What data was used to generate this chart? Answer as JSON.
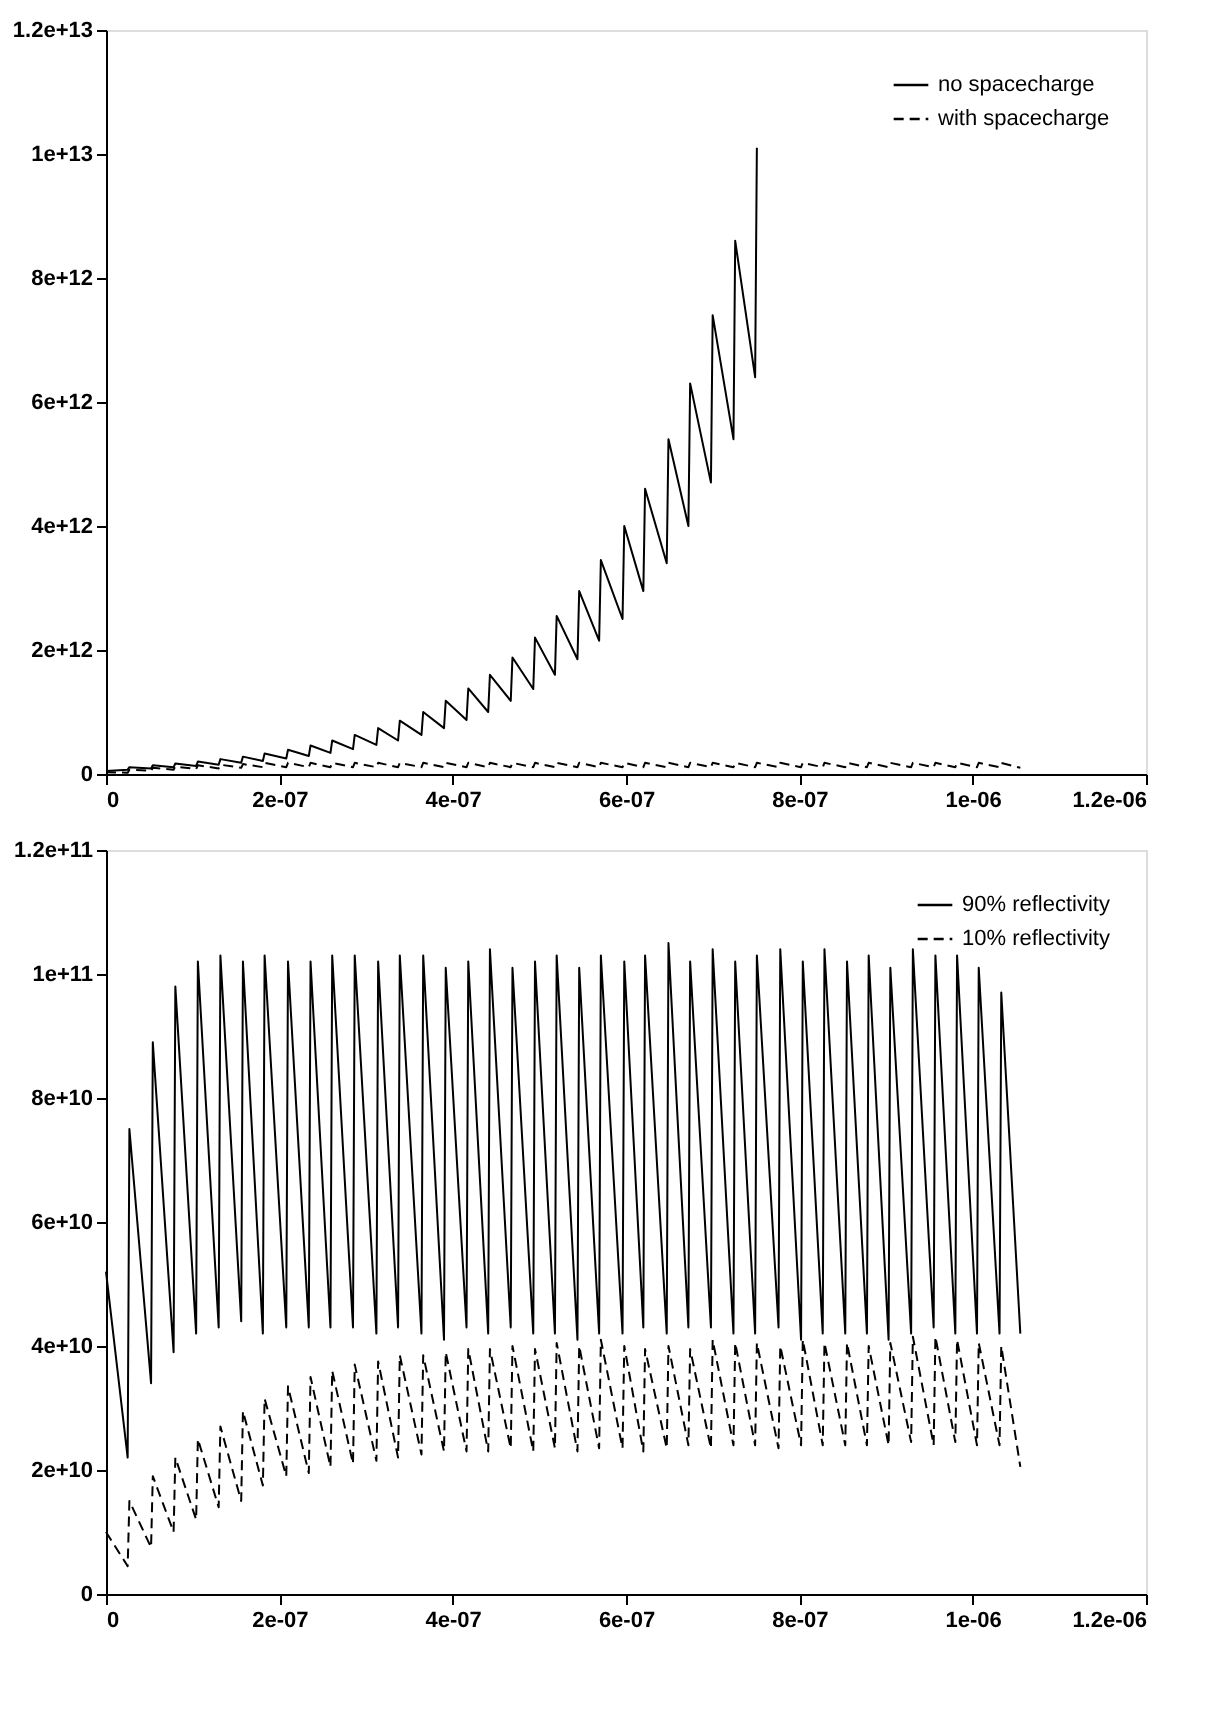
{
  "chart_data": [
    {
      "type": "line",
      "legend": "top right",
      "grid": false,
      "xlim": [
        0,
        1.2e-06
      ],
      "xticks": [
        0,
        {
          "value": 2e-07,
          "label": "2e-07"
        },
        {
          "value": 4e-07,
          "label": "4e-07"
        },
        {
          "value": 6e-07,
          "label": "6e-07"
        },
        {
          "value": 8e-07,
          "label": "8e-07"
        },
        {
          "value": 1e-06,
          "label": "1e-06"
        },
        {
          "value": 1.2e-06,
          "label": "1.2e-06"
        }
      ],
      "ylim": [
        0,
        12000000000000.0
      ],
      "yticks": [
        0,
        {
          "value": 2000000000000.0,
          "label": "2e+12"
        },
        {
          "value": 4000000000000.0,
          "label": "4e+12"
        },
        {
          "value": 6000000000000.0,
          "label": "6e+12"
        },
        {
          "value": 8000000000000.0,
          "label": "8e+12"
        },
        {
          "value": 10000000000000.0,
          "label": "1e+13"
        },
        {
          "value": 12000000000000.0,
          "label": "1.2e+13"
        }
      ],
      "series": [
        {
          "name": "no spacecharge",
          "color": "#000000",
          "line_style": "solid",
          "x": [
            0,
            2.5e-08,
            2.7e-08,
            5.2e-08,
            5.4e-08,
            7.8e-08,
            8e-08,
            1.04e-07,
            1.06e-07,
            1.3e-07,
            1.32e-07,
            1.56e-07,
            1.58e-07,
            1.81e-07,
            1.83e-07,
            2.08e-07,
            2.1e-07,
            2.34e-07,
            2.36e-07,
            2.59e-07,
            2.61e-07,
            2.85e-07,
            2.87e-07,
            3.12e-07,
            3.14e-07,
            3.37e-07,
            3.39e-07,
            3.64e-07,
            3.66e-07,
            3.9e-07,
            3.92e-07,
            4.16e-07,
            4.18e-07,
            4.41e-07,
            4.43e-07,
            4.67e-07,
            4.69e-07,
            4.93e-07,
            4.95e-07,
            5.18e-07,
            5.2e-07,
            5.44e-07,
            5.46e-07,
            5.69e-07,
            5.71e-07,
            5.96e-07,
            5.98e-07,
            6.2e-07,
            6.22e-07,
            6.47e-07,
            6.49e-07,
            6.72e-07,
            6.74e-07,
            6.98e-07,
            7e-07,
            7.24e-07,
            7.26e-07,
            7.49e-07,
            7.51e-07
          ],
          "values": [
            50000000000.0,
            70000000000.0,
            110000000000.0,
            90000000000.0,
            140000000000.0,
            110000000000.0,
            170000000000.0,
            130000000000.0,
            200000000000.0,
            150000000000.0,
            240000000000.0,
            180000000000.0,
            280000000000.0,
            210000000000.0,
            330000000000.0,
            250000000000.0,
            390000000000.0,
            290000000000.0,
            460000000000.0,
            340000000000.0,
            540000000000.0,
            400000000000.0,
            630000000000.0,
            470000000000.0,
            740000000000.0,
            540000000000.0,
            860000000000.0,
            630000000000.0,
            1000000000000.0,
            740000000000.0,
            1180000000000.0,
            870000000000.0,
            1380000000000.0,
            1000000000000.0,
            1600000000000.0,
            1180000000000.0,
            1880000000000.0,
            1370000000000.0,
            2200000000000.0,
            1600000000000.0,
            2550000000000.0,
            1850000000000.0,
            2950000000000.0,
            2150000000000.0,
            3450000000000.0,
            2500000000000.0,
            4000000000000.0,
            2950000000000.0,
            4600000000000.0,
            3400000000000.0,
            5400000000000.0,
            4000000000000.0,
            6300000000000.0,
            4700000000000.0,
            7400000000000.0,
            5400000000000.0,
            8600000000000.0,
            6400000000000.0,
            10100000000000.0
          ]
        },
        {
          "name": "with spacecharge",
          "color": "#000000",
          "line_style": "dashed",
          "x": [
            0,
            2.5e-08,
            2.7e-08,
            5.2e-08,
            5.4e-08,
            7.8e-08,
            8e-08,
            1.04e-07,
            1.06e-07,
            1.3e-07,
            1.32e-07,
            1.56e-07,
            1.58e-07,
            1.81e-07,
            1.83e-07,
            2.08e-07,
            2.1e-07,
            2.34e-07,
            2.36e-07,
            2.59e-07,
            2.61e-07,
            2.85e-07,
            2.87e-07,
            3.12e-07,
            3.14e-07,
            3.37e-07,
            3.39e-07,
            3.64e-07,
            3.66e-07,
            3.9e-07,
            3.92e-07,
            4.16e-07,
            4.18e-07,
            4.41e-07,
            4.43e-07,
            4.67e-07,
            4.69e-07,
            4.93e-07,
            4.95e-07,
            5.18e-07,
            5.2e-07,
            5.44e-07,
            5.46e-07,
            5.69e-07,
            5.71e-07,
            5.96e-07,
            5.98e-07,
            6.2e-07,
            6.22e-07,
            6.47e-07,
            6.49e-07,
            6.72e-07,
            6.74e-07,
            6.98e-07,
            7e-07,
            7.24e-07,
            7.26e-07,
            7.49e-07,
            7.51e-07,
            7.76e-07,
            7.78e-07,
            8.02e-07,
            8.04e-07,
            8.27e-07,
            8.29e-07,
            8.53e-07,
            8.55e-07,
            8.78e-07,
            8.8e-07,
            9.03e-07,
            9.05e-07,
            9.29e-07,
            9.31e-07,
            9.55e-07,
            9.57e-07,
            9.8e-07,
            9.82e-07,
            1.005e-06,
            1.007e-06,
            1.031e-06,
            1.033e-06,
            1.055e-06
          ],
          "values": [
            30000000000.0,
            20000000000.0,
            70000000000.0,
            50000000000.0,
            100000000000.0,
            70000000000.0,
            120000000000.0,
            80000000000.0,
            140000000000.0,
            90000000000.0,
            150000000000.0,
            100000000000.0,
            160000000000.0,
            110000000000.0,
            180000000000.0,
            110000000000.0,
            180000000000.0,
            110000000000.0,
            180000000000.0,
            110000000000.0,
            180000000000.0,
            110000000000.0,
            180000000000.0,
            110000000000.0,
            180000000000.0,
            110000000000.0,
            180000000000.0,
            110000000000.0,
            180000000000.0,
            110000000000.0,
            180000000000.0,
            110000000000.0,
            180000000000.0,
            110000000000.0,
            180000000000.0,
            110000000000.0,
            180000000000.0,
            110000000000.0,
            180000000000.0,
            110000000000.0,
            180000000000.0,
            110000000000.0,
            180000000000.0,
            110000000000.0,
            180000000000.0,
            110000000000.0,
            180000000000.0,
            110000000000.0,
            180000000000.0,
            110000000000.0,
            180000000000.0,
            110000000000.0,
            180000000000.0,
            110000000000.0,
            180000000000.0,
            110000000000.0,
            180000000000.0,
            110000000000.0,
            180000000000.0,
            110000000000.0,
            180000000000.0,
            110000000000.0,
            180000000000.0,
            110000000000.0,
            180000000000.0,
            110000000000.0,
            180000000000.0,
            110000000000.0,
            180000000000.0,
            110000000000.0,
            180000000000.0,
            110000000000.0,
            180000000000.0,
            110000000000.0,
            180000000000.0,
            110000000000.0,
            180000000000.0,
            110000000000.0,
            180000000000.0,
            110000000000.0,
            180000000000.0,
            100000000000.0
          ]
        }
      ]
    },
    {
      "type": "line",
      "legend": "top right",
      "grid": false,
      "xlim": [
        0,
        1.2e-06
      ],
      "xticks": [
        0,
        {
          "value": 2e-07,
          "label": "2e-07"
        },
        {
          "value": 4e-07,
          "label": "4e-07"
        },
        {
          "value": 6e-07,
          "label": "6e-07"
        },
        {
          "value": 8e-07,
          "label": "8e-07"
        },
        {
          "value": 1e-06,
          "label": "1e-06"
        },
        {
          "value": 1.2e-06,
          "label": "1.2e-06"
        }
      ],
      "ylim": [
        0,
        120000000000.0
      ],
      "yticks": [
        0,
        {
          "value": 20000000000.0,
          "label": "2e+10"
        },
        {
          "value": 40000000000.0,
          "label": "4e+10"
        },
        {
          "value": 60000000000.0,
          "label": "6e+10"
        },
        {
          "value": 80000000000.0,
          "label": "8e+10"
        },
        {
          "value": 100000000000.0,
          "label": "1e+11"
        },
        {
          "value": 120000000000.0,
          "label": "1.2e+11"
        }
      ],
      "series": [
        {
          "name": "90% reflectivity",
          "color": "#000000",
          "line_style": "solid",
          "x": [
            0,
            2.5e-08,
            2.7e-08,
            5.2e-08,
            5.4e-08,
            7.8e-08,
            8e-08,
            1.04e-07,
            1.06e-07,
            1.3e-07,
            1.32e-07,
            1.56e-07,
            1.58e-07,
            1.81e-07,
            1.83e-07,
            2.08e-07,
            2.1e-07,
            2.34e-07,
            2.36e-07,
            2.59e-07,
            2.61e-07,
            2.85e-07,
            2.87e-07,
            3.12e-07,
            3.14e-07,
            3.37e-07,
            3.39e-07,
            3.64e-07,
            3.66e-07,
            3.9e-07,
            3.92e-07,
            4.16e-07,
            4.18e-07,
            4.41e-07,
            4.43e-07,
            4.67e-07,
            4.69e-07,
            4.93e-07,
            4.95e-07,
            5.18e-07,
            5.2e-07,
            5.44e-07,
            5.46e-07,
            5.69e-07,
            5.71e-07,
            5.96e-07,
            5.98e-07,
            6.2e-07,
            6.22e-07,
            6.47e-07,
            6.49e-07,
            6.72e-07,
            6.74e-07,
            6.98e-07,
            7e-07,
            7.24e-07,
            7.26e-07,
            7.49e-07,
            7.51e-07,
            7.76e-07,
            7.78e-07,
            8.02e-07,
            8.04e-07,
            8.27e-07,
            8.29e-07,
            8.53e-07,
            8.55e-07,
            8.78e-07,
            8.8e-07,
            9.03e-07,
            9.05e-07,
            9.29e-07,
            9.31e-07,
            9.55e-07,
            9.57e-07,
            9.8e-07,
            9.82e-07,
            1.005e-06,
            1.007e-06,
            1.031e-06,
            1.033e-06,
            1.055e-06
          ],
          "values": [
            52000000000.0,
            22000000000.0,
            75000000000.0,
            34000000000.0,
            89000000000.0,
            39000000000.0,
            98000000000.0,
            42000000000.0,
            102000000000.0,
            43000000000.0,
            103000000000.0,
            44000000000.0,
            102000000000.0,
            42000000000.0,
            103000000000.0,
            43000000000.0,
            102000000000.0,
            43000000000.0,
            102000000000.0,
            43000000000.0,
            103000000000.0,
            43000000000.0,
            103000000000.0,
            42000000000.0,
            102000000000.0,
            43000000000.0,
            103000000000.0,
            42000000000.0,
            103000000000.0,
            41000000000.0,
            101000000000.0,
            43000000000.0,
            102000000000.0,
            42000000000.0,
            104000000000.0,
            43000000000.0,
            101000000000.0,
            42000000000.0,
            102000000000.0,
            42000000000.0,
            103000000000.0,
            41000000000.0,
            101000000000.0,
            42000000000.0,
            103000000000.0,
            42000000000.0,
            102000000000.0,
            43000000000.0,
            103000000000.0,
            42000000000.0,
            105000000000.0,
            43000000000.0,
            102000000000.0,
            43000000000.0,
            104000000000.0,
            42000000000.0,
            102000000000.0,
            42000000000.0,
            103000000000.0,
            43000000000.0,
            104000000000.0,
            41000000000.0,
            102000000000.0,
            42000000000.0,
            104000000000.0,
            42000000000.0,
            102000000000.0,
            42000000000.0,
            103000000000.0,
            41000000000.0,
            101000000000.0,
            42000000000.0,
            104000000000.0,
            43000000000.0,
            103000000000.0,
            42000000000.0,
            103000000000.0,
            42000000000.0,
            101000000000.0,
            42000000000.0,
            97000000000.0,
            42000000000.0
          ]
        },
        {
          "name": "10% reflectivity",
          "color": "#000000",
          "line_style": "dashed",
          "x": [
            0,
            2.5e-08,
            2.7e-08,
            5.2e-08,
            5.4e-08,
            7.8e-08,
            8e-08,
            1.04e-07,
            1.06e-07,
            1.3e-07,
            1.32e-07,
            1.56e-07,
            1.58e-07,
            1.81e-07,
            1.83e-07,
            2.08e-07,
            2.1e-07,
            2.34e-07,
            2.36e-07,
            2.59e-07,
            2.61e-07,
            2.85e-07,
            2.87e-07,
            3.12e-07,
            3.14e-07,
            3.37e-07,
            3.39e-07,
            3.64e-07,
            3.66e-07,
            3.9e-07,
            3.92e-07,
            4.16e-07,
            4.18e-07,
            4.41e-07,
            4.43e-07,
            4.67e-07,
            4.69e-07,
            4.93e-07,
            4.95e-07,
            5.18e-07,
            5.2e-07,
            5.44e-07,
            5.46e-07,
            5.69e-07,
            5.71e-07,
            5.96e-07,
            5.98e-07,
            6.2e-07,
            6.22e-07,
            6.47e-07,
            6.49e-07,
            6.72e-07,
            6.74e-07,
            6.98e-07,
            7e-07,
            7.24e-07,
            7.26e-07,
            7.49e-07,
            7.51e-07,
            7.76e-07,
            7.78e-07,
            8.02e-07,
            8.04e-07,
            8.27e-07,
            8.29e-07,
            8.53e-07,
            8.55e-07,
            8.78e-07,
            8.8e-07,
            9.03e-07,
            9.05e-07,
            9.29e-07,
            9.31e-07,
            9.55e-07,
            9.57e-07,
            9.8e-07,
            9.82e-07,
            1.005e-06,
            1.007e-06,
            1.031e-06,
            1.033e-06,
            1.055e-06
          ],
          "values": [
            10000000000.0,
            4500000000.0,
            15000000000.0,
            7500000000.0,
            19000000000.0,
            10000000000.0,
            22000000000.0,
            12000000000.0,
            25000000000.0,
            14000000000.0,
            27000000000.0,
            15000000000.0,
            29500000000.0,
            17500000000.0,
            31500000000.0,
            19000000000.0,
            33500000000.0,
            19500000000.0,
            35000000000.0,
            20500000000.0,
            36000000000.0,
            21000000000.0,
            37000000000.0,
            21500000000.0,
            37500000000.0,
            22000000000.0,
            38500000000.0,
            22500000000.0,
            38500000000.0,
            23000000000.0,
            39000000000.0,
            23000000000.0,
            39500000000.0,
            23000000000.0,
            39500000000.0,
            23500000000.0,
            40000000000.0,
            23000000000.0,
            39500000000.0,
            23500000000.0,
            40500000000.0,
            23000000000.0,
            40000000000.0,
            23500000000.0,
            41000000000.0,
            23500000000.0,
            40000000000.0,
            23000000000.0,
            39500000000.0,
            23500000000.0,
            40000000000.0,
            24000000000.0,
            39500000000.0,
            23500000000.0,
            41000000000.0,
            24000000000.0,
            40500000000.0,
            24000000000.0,
            40500000000.0,
            23500000000.0,
            40000000000.0,
            24000000000.0,
            41000000000.0,
            24000000000.0,
            40500000000.0,
            24000000000.0,
            40500000000.0,
            24000000000.0,
            40000000000.0,
            24000000000.0,
            40500000000.0,
            24500000000.0,
            41500000000.0,
            24000000000.0,
            41500000000.0,
            24500000000.0,
            41000000000.0,
            24000000000.0,
            40500000000.0,
            24000000000.0,
            40000000000.0,
            20500000000.0
          ]
        }
      ]
    }
  ]
}
